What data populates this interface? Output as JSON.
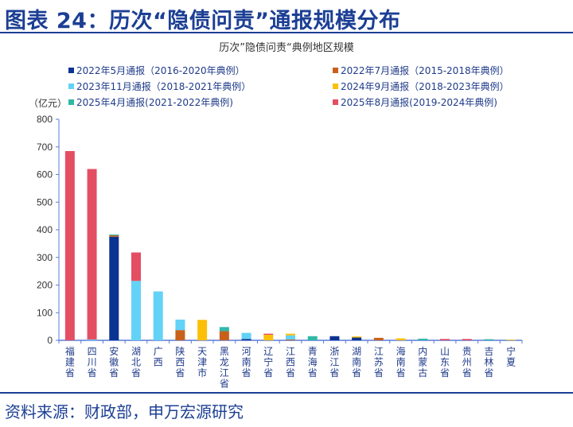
{
  "header": {
    "figure_title": "图表 24：历次“隐债问责”通报规模分布"
  },
  "footer": {
    "source": "资料来源：财政部，申万宏源研究"
  },
  "chart_data": {
    "type": "bar",
    "stacked": true,
    "title": "历次”隐债问责“典例地区规模",
    "unit_label": "（亿元）",
    "xlabel": "",
    "ylabel": "亿元",
    "ylim": [
      0,
      800
    ],
    "yticks": [
      0,
      100,
      200,
      300,
      400,
      500,
      600,
      700,
      800
    ],
    "grid": false,
    "legend_position": "top",
    "categories": [
      "福建省",
      "四川省",
      "安徽省",
      "湖北省",
      "广西",
      "陕西省",
      "天津市",
      "黑龙江省",
      "河南省",
      "辽宁省",
      "江西省",
      "青海省",
      "浙江省",
      "湖南省",
      "江苏省",
      "海南省",
      "内蒙古",
      "山东省",
      "贵州省",
      "吉林省",
      "宁夏"
    ],
    "series": [
      {
        "name": "2022年5月通报（2016-2020年典例）",
        "color": "#0b3391",
        "values": [
          0,
          0,
          375,
          0,
          0,
          0,
          0,
          0,
          5,
          0,
          0,
          0,
          15,
          10,
          0,
          0,
          0,
          0,
          0,
          0,
          0
        ]
      },
      {
        "name": "2022年7月通报（2015-2018年典例）",
        "color": "#c8601b",
        "values": [
          0,
          0,
          5,
          0,
          0,
          37,
          0,
          33,
          0,
          0,
          3,
          0,
          0,
          0,
          9,
          0,
          0,
          0,
          0,
          0,
          0
        ]
      },
      {
        "name": "2023年11月通报（2018-2021年典例）",
        "color": "#62d2f7",
        "values": [
          0,
          3,
          0,
          215,
          177,
          38,
          0,
          0,
          22,
          0,
          15,
          0,
          0,
          0,
          0,
          0,
          0,
          0,
          0,
          0,
          0
        ]
      },
      {
        "name": "2024年9月通报（2018-2023年典例）",
        "color": "#fbbf07",
        "values": [
          0,
          0,
          0,
          0,
          0,
          0,
          74,
          0,
          0,
          20,
          6,
          0,
          0,
          4,
          0,
          7,
          0,
          0,
          0,
          0,
          2
        ]
      },
      {
        "name": "2025年4月通报(2021-2022年典例)",
        "color": "#30b8a8",
        "values": [
          0,
          0,
          3,
          0,
          0,
          0,
          0,
          15,
          0,
          0,
          0,
          15,
          0,
          0,
          0,
          0,
          6,
          0,
          0,
          4,
          0
        ]
      },
      {
        "name": "2025年8月通报(2019-2024年典例)",
        "color": "#e44e63",
        "values": [
          685,
          617,
          0,
          103,
          0,
          0,
          0,
          0,
          0,
          4,
          0,
          0,
          0,
          0,
          0,
          0,
          0,
          5,
          5,
          0,
          0
        ]
      }
    ],
    "legend_order": [
      0,
      1,
      2,
      3,
      4,
      5
    ]
  }
}
